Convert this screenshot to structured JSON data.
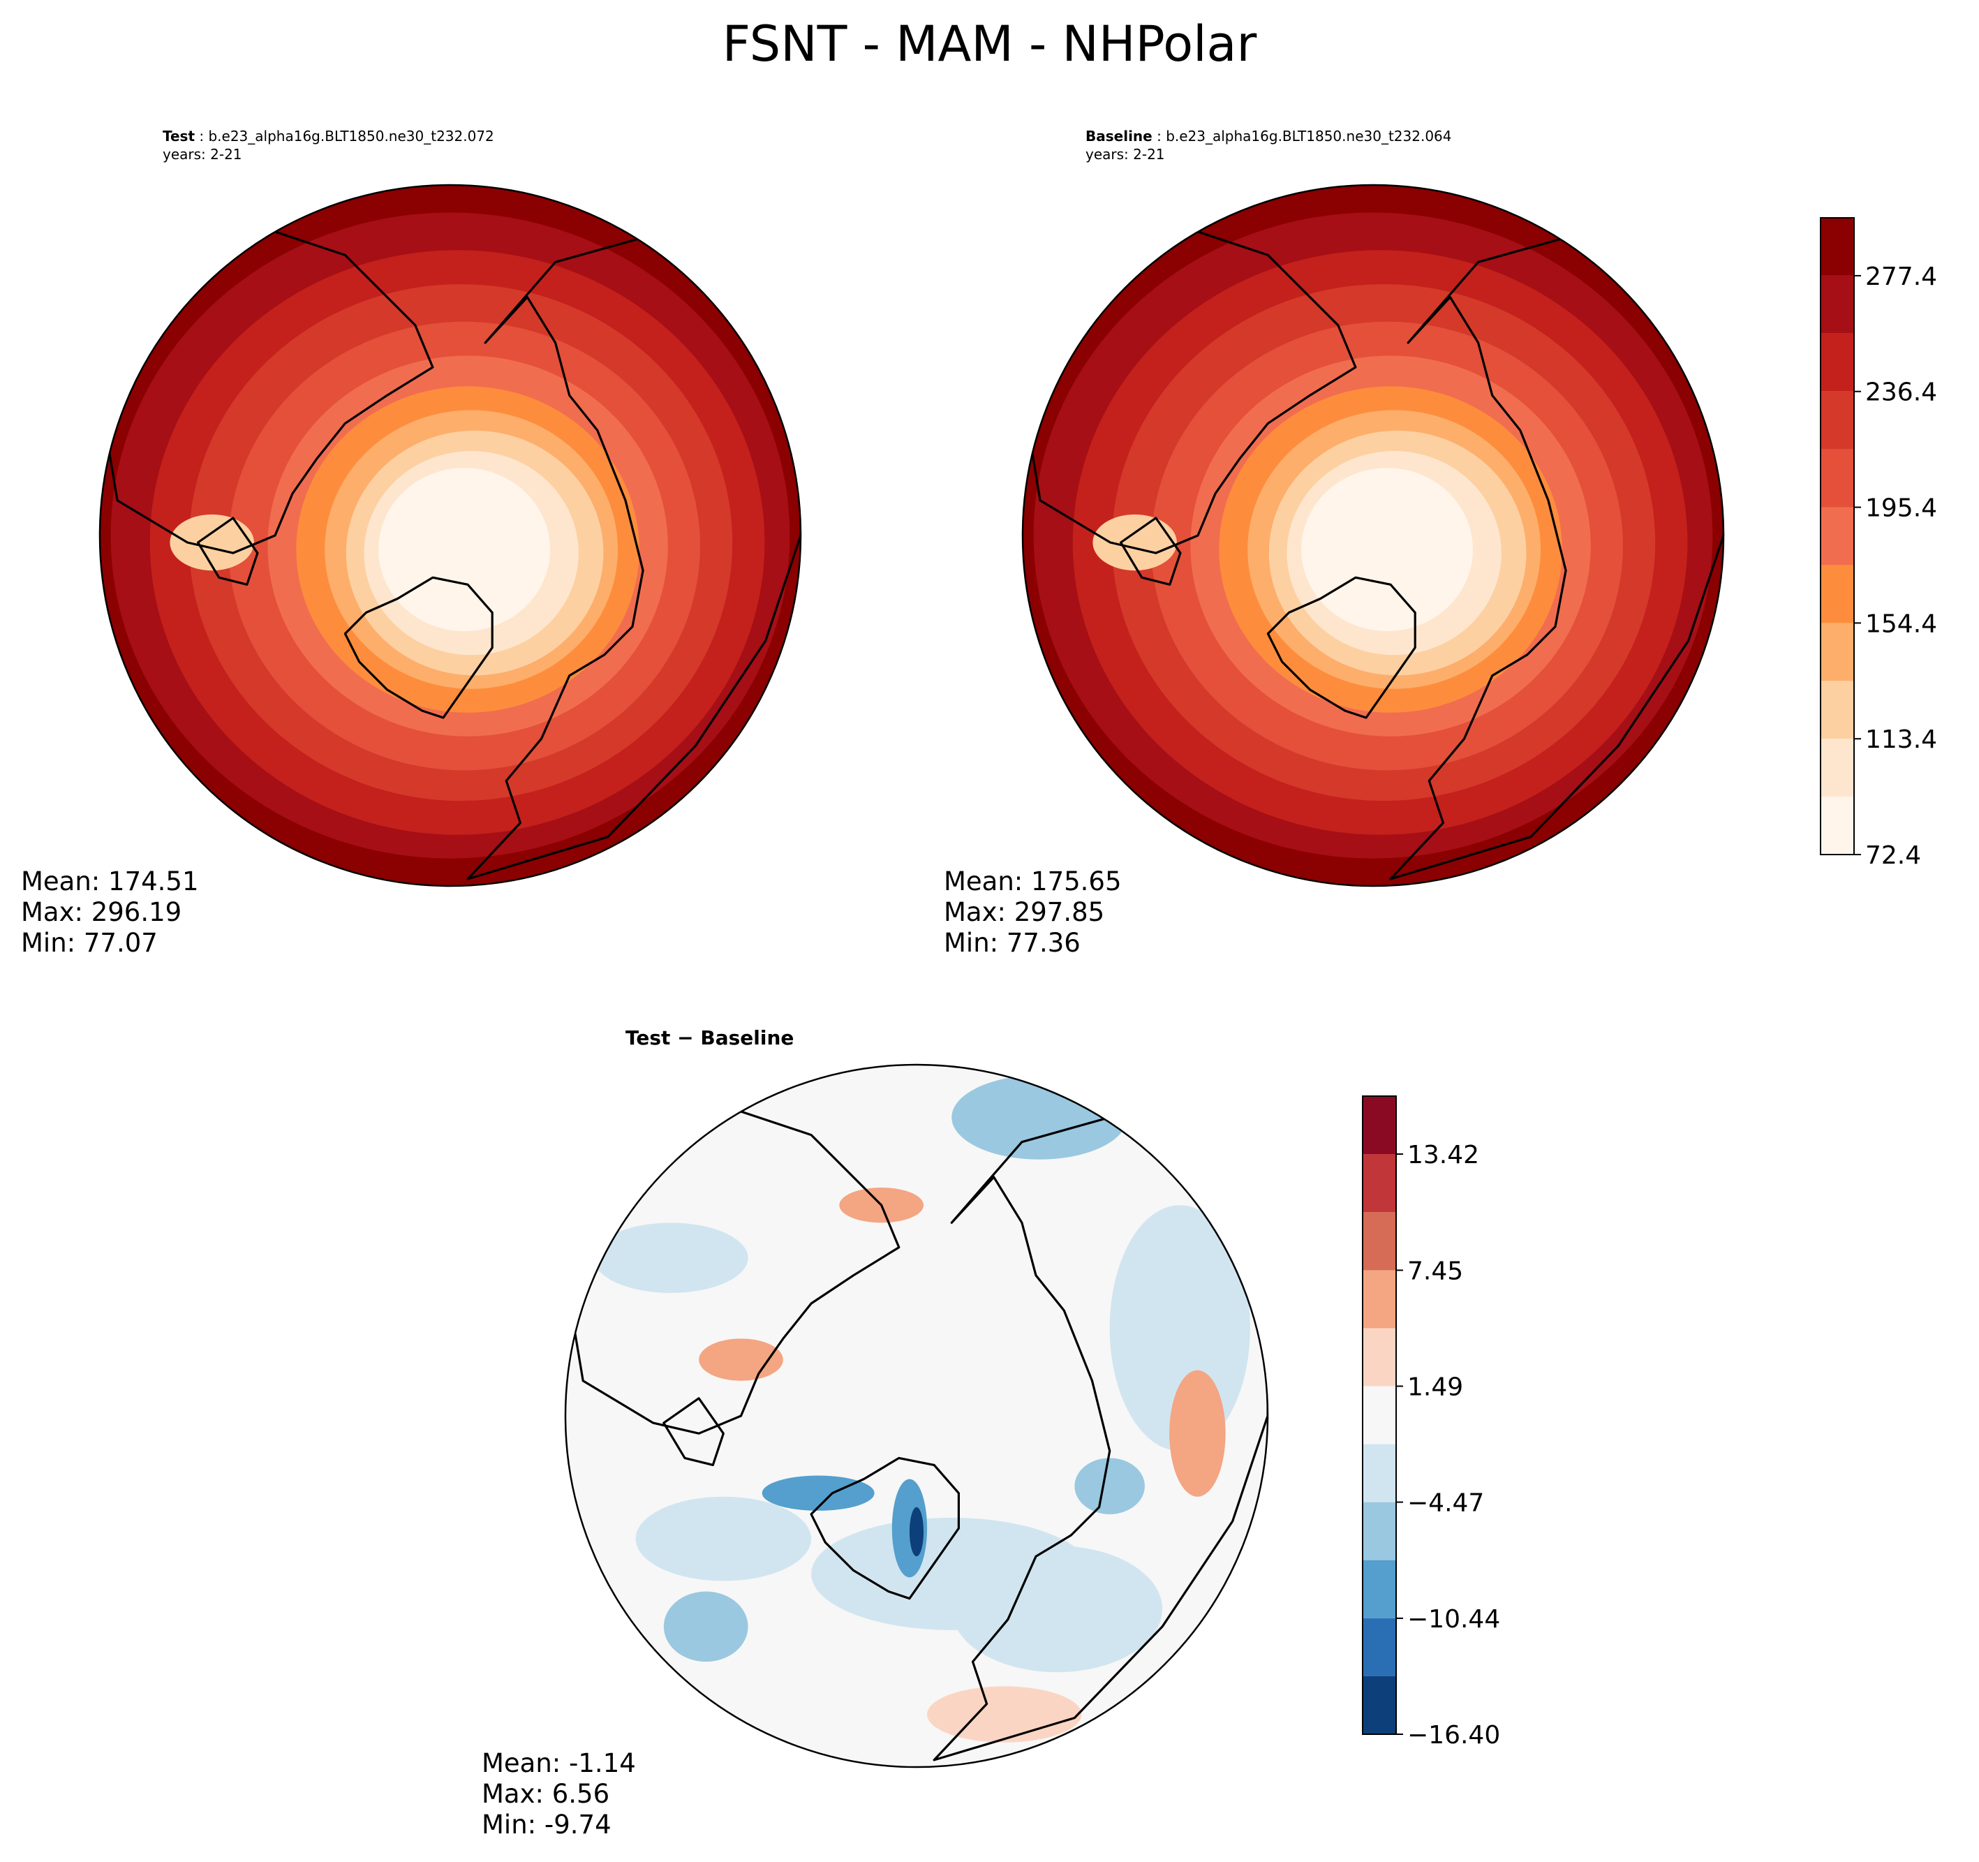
{
  "title": "FSNT - MAM - NHPolar",
  "colors": {
    "reds": [
      "#fff5eb",
      "#fee6ce",
      "#fdd0a2",
      "#fdae6b",
      "#fd8d3c",
      "#f16d4f",
      "#e4503a",
      "#d4392a",
      "#c4201c",
      "#a50f15",
      "#8b0000"
    ],
    "diff": [
      "#0d3f7a",
      "#2a6fb4",
      "#549fcd",
      "#9ac8e0",
      "#d1e5f0",
      "#f7f7f7",
      "#fbd5c3",
      "#f4a582",
      "#d66b56",
      "#c13639",
      "#8a0a24"
    ]
  },
  "panels": {
    "test": {
      "label": "Test",
      "case_name": "b.e23_alpha16g.BLT1850.ne30_t232.072",
      "years": "years: 2-21",
      "mean": "Mean: 174.51",
      "max": "Max: 296.19",
      "min": "Min: 77.07"
    },
    "baseline": {
      "label": "Baseline",
      "case_name": "b.e23_alpha16g.BLT1850.ne30_t232.064",
      "years": "years: 2-21",
      "mean": "Mean: 175.65",
      "max": "Max: 297.85",
      "min": "Min: 77.36"
    },
    "diff": {
      "title": "Test − Baseline",
      "mean": "Mean: -1.14",
      "max": "Max:  6.56",
      "min": "Min: -9.74"
    }
  },
  "chart_data": [
    {
      "type": "heatmap",
      "name": "Test",
      "projection": "north polar stereographic",
      "variable": "FSNT",
      "season": "MAM",
      "colorbar": {
        "levels": [
          72.4,
          92.9,
          113.4,
          133.9,
          154.4,
          174.9,
          195.4,
          215.9,
          236.4,
          256.9,
          277.4,
          297.9
        ],
        "tick_labels": [
          "72.4",
          "113.4",
          "154.4",
          "195.4",
          "236.4",
          "277.4"
        ]
      },
      "mean": 174.51,
      "max": 296.19,
      "min": 77.07
    },
    {
      "type": "heatmap",
      "name": "Baseline",
      "projection": "north polar stereographic",
      "variable": "FSNT",
      "season": "MAM",
      "colorbar": {
        "levels": [
          72.4,
          92.9,
          113.4,
          133.9,
          154.4,
          174.9,
          195.4,
          215.9,
          236.4,
          256.9,
          277.4,
          297.9
        ],
        "tick_labels": [
          "72.4",
          "113.4",
          "154.4",
          "195.4",
          "236.4",
          "277.4"
        ]
      },
      "mean": 175.65,
      "max": 297.85,
      "min": 77.36
    },
    {
      "type": "heatmap",
      "name": "Test − Baseline",
      "projection": "north polar stereographic",
      "colorbar": {
        "levels": [
          -16.4,
          -13.42,
          -10.44,
          -7.45,
          -4.47,
          -1.49,
          1.49,
          4.47,
          7.45,
          10.44,
          13.42,
          16.4
        ],
        "tick_labels": [
          "−16.40",
          "−10.44",
          "−4.47",
          "1.49",
          "7.45",
          "13.42"
        ]
      },
      "mean": -1.14,
      "max": 6.56,
      "min": -9.74
    }
  ]
}
